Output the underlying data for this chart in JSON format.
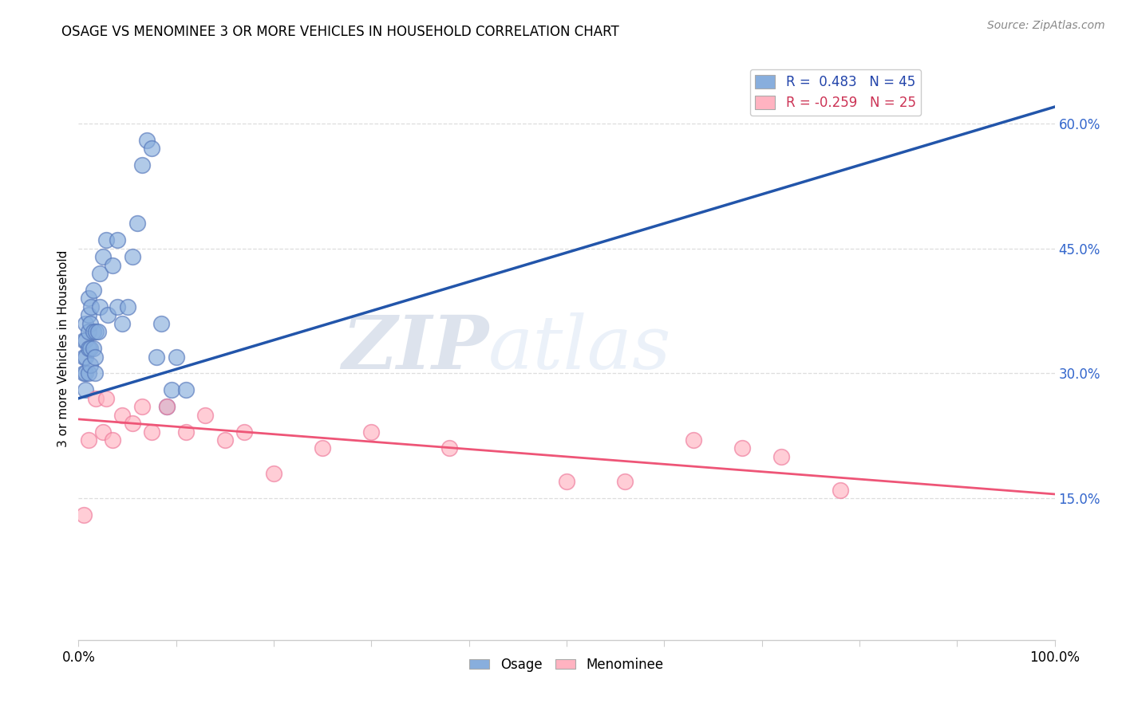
{
  "title": "OSAGE VS MENOMINEE 3 OR MORE VEHICLES IN HOUSEHOLD CORRELATION CHART",
  "source": "Source: ZipAtlas.com",
  "ylabel": "3 or more Vehicles in Household",
  "xlim": [
    0.0,
    1.0
  ],
  "ylim": [
    -0.02,
    0.68
  ],
  "legend_blue_label": "R =  0.483   N = 45",
  "legend_pink_label": "R = -0.259   N = 25",
  "blue_color": "#88AEDD",
  "pink_color": "#FFB3C1",
  "blue_edge_color": "#5577BB",
  "pink_edge_color": "#EE7799",
  "blue_line_color": "#2255AA",
  "pink_line_color": "#EE5577",
  "watermark_zip": "ZIP",
  "watermark_atlas": "atlas",
  "osage_x": [
    0.005,
    0.005,
    0.005,
    0.007,
    0.007,
    0.007,
    0.007,
    0.007,
    0.01,
    0.01,
    0.01,
    0.01,
    0.01,
    0.012,
    0.012,
    0.012,
    0.013,
    0.015,
    0.015,
    0.015,
    0.017,
    0.017,
    0.018,
    0.02,
    0.022,
    0.022,
    0.025,
    0.028,
    0.03,
    0.035,
    0.04,
    0.04,
    0.045,
    0.05,
    0.055,
    0.06,
    0.065,
    0.07,
    0.075,
    0.08,
    0.085,
    0.09,
    0.095,
    0.1,
    0.11
  ],
  "osage_y": [
    0.3,
    0.32,
    0.34,
    0.28,
    0.3,
    0.32,
    0.34,
    0.36,
    0.3,
    0.33,
    0.35,
    0.37,
    0.39,
    0.31,
    0.33,
    0.36,
    0.38,
    0.33,
    0.35,
    0.4,
    0.3,
    0.32,
    0.35,
    0.35,
    0.38,
    0.42,
    0.44,
    0.46,
    0.37,
    0.43,
    0.38,
    0.46,
    0.36,
    0.38,
    0.44,
    0.48,
    0.55,
    0.58,
    0.57,
    0.32,
    0.36,
    0.26,
    0.28,
    0.32,
    0.28
  ],
  "menominee_x": [
    0.005,
    0.01,
    0.018,
    0.025,
    0.028,
    0.035,
    0.045,
    0.055,
    0.065,
    0.075,
    0.09,
    0.11,
    0.13,
    0.15,
    0.17,
    0.2,
    0.25,
    0.3,
    0.38,
    0.5,
    0.56,
    0.63,
    0.68,
    0.72,
    0.78
  ],
  "menominee_y": [
    0.13,
    0.22,
    0.27,
    0.23,
    0.27,
    0.22,
    0.25,
    0.24,
    0.26,
    0.23,
    0.26,
    0.23,
    0.25,
    0.22,
    0.23,
    0.18,
    0.21,
    0.23,
    0.21,
    0.17,
    0.17,
    0.22,
    0.21,
    0.2,
    0.16
  ],
  "blue_trendline_x": [
    0.0,
    1.0
  ],
  "blue_trendline_y": [
    0.27,
    0.62
  ],
  "pink_trendline_x": [
    0.0,
    1.0
  ],
  "pink_trendline_y": [
    0.245,
    0.155
  ],
  "ytick_vals": [
    0.15,
    0.3,
    0.45,
    0.6
  ],
  "ytick_labels": [
    "15.0%",
    "30.0%",
    "45.0%",
    "60.0%"
  ],
  "xtick_positions": [
    0.0,
    0.1,
    0.2,
    0.3,
    0.4,
    0.5,
    0.6,
    0.7,
    0.8,
    0.9,
    1.0
  ],
  "xtick_show_labels": [
    0.0,
    1.0
  ],
  "grid_color": "#DDDDDD",
  "spine_color": "#CCCCCC"
}
